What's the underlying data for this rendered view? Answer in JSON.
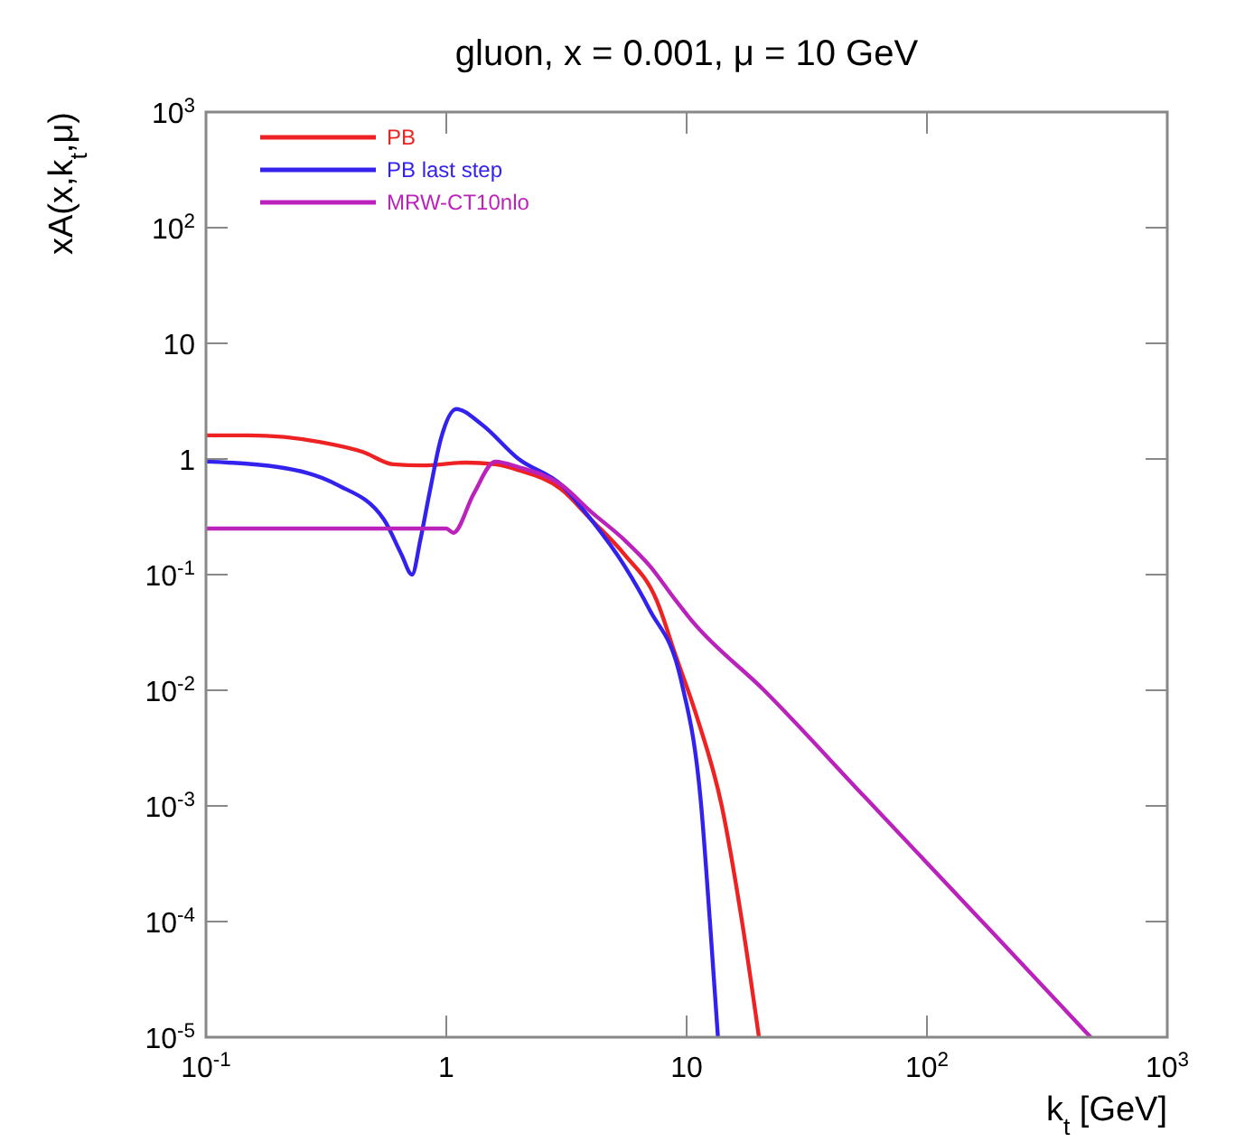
{
  "chart_data": {
    "type": "line",
    "title": "gluon, x = 0.001, μ = 10 GeV",
    "xlabel": "k$_{t}$ [GeV]",
    "ylabel": "xA(x,k$_{t}$,μ)",
    "log": "xy",
    "grid": false,
    "legend": "top left",
    "line_style": "solid",
    "marker": "none",
    "xlim": [
      0.1,
      1000
    ],
    "ylim": [
      1e-05,
      1000
    ],
    "xticks": [
      {
        "value": 0.1,
        "label": "10$^{-1}$"
      },
      1,
      10,
      {
        "value": 100,
        "label": "10$^{2}$"
      },
      {
        "value": 1000,
        "label": "10$^{3}$"
      }
    ],
    "yticks": [
      {
        "value": 1e-05,
        "label": "10$^{-5}$"
      },
      {
        "value": 0.0001,
        "label": "10$^{-4}$"
      },
      {
        "value": 0.001,
        "label": "10$^{-3}$"
      },
      {
        "value": 0.01,
        "label": "10$^{-2}$"
      },
      {
        "value": 0.1,
        "label": "10$^{-1}$"
      },
      1,
      10,
      {
        "value": 100,
        "label": "10$^{2}$"
      },
      {
        "value": 1000,
        "label": "10$^{3}$"
      }
    ],
    "series": [
      {
        "name": "PB",
        "color": "#ee2222",
        "x": [
          0.1,
          0.15,
          0.3,
          0.45,
          0.6,
          0.8,
          1.2,
          1.6,
          2,
          3,
          4,
          5.5,
          7.5,
          9,
          11,
          14,
          17,
          20
        ],
        "values": [
          1.6,
          1.6,
          1.4,
          1.15,
          0.9,
          0.88,
          0.93,
          0.9,
          0.8,
          0.55,
          0.3,
          0.15,
          0.06,
          0.02,
          0.006,
          0.001,
          0.0001,
          1e-05
        ]
      },
      {
        "name": "PB last step",
        "color": "#3322ee",
        "x": [
          0.1,
          0.2,
          0.35,
          0.55,
          0.65,
          0.72,
          0.78,
          0.85,
          0.95,
          1.1,
          1.4,
          2,
          3,
          4,
          5.5,
          7,
          9.5,
          11.5,
          12.5,
          13.5
        ],
        "values": [
          0.95,
          0.85,
          0.6,
          0.3,
          0.15,
          0.1,
          0.2,
          0.5,
          1.5,
          2.7,
          2,
          1,
          0.6,
          0.3,
          0.12,
          0.05,
          0.012,
          0.001,
          0.0001,
          1e-05
        ]
      },
      {
        "name": "MRW-CT10nlo",
        "color": "#bb22bb",
        "x": [
          0.1,
          1,
          1.07,
          1.3,
          1.6,
          2,
          3,
          4,
          5.5,
          7,
          9,
          10.5,
          21,
          55,
          178,
          480
        ],
        "values": [
          0.25,
          0.25,
          0.23,
          0.5,
          0.95,
          0.85,
          0.6,
          0.35,
          0.2,
          0.12,
          0.06,
          0.04,
          0.01,
          0.0012,
          9e-05,
          1e-05
        ]
      }
    ]
  }
}
